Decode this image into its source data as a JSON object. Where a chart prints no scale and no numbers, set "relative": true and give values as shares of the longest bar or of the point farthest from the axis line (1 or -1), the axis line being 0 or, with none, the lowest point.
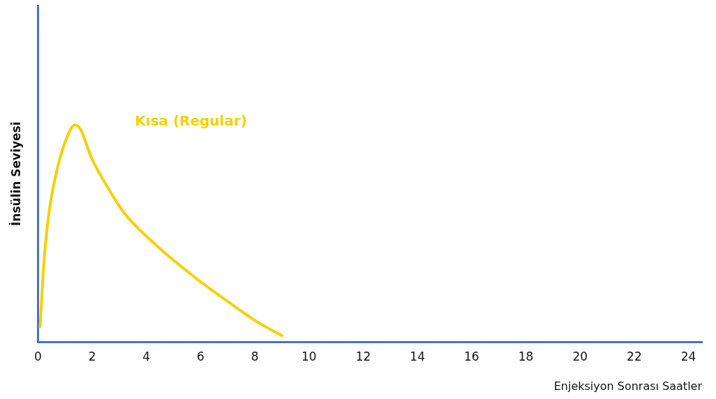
{
  "chart_data": {
    "type": "line",
    "relative": true,
    "xlabel": "Enjeksiyon Sonrası Saatler",
    "ylabel": "İnsülin Seviyesi",
    "xlim": [
      0,
      24.5
    ],
    "xticks": [
      0,
      2,
      4,
      6,
      8,
      10,
      12,
      14,
      16,
      18,
      20,
      22,
      24
    ],
    "grid": false,
    "legend": false,
    "marker": "none",
    "line_style": "solid",
    "series": [
      {
        "name": "Kısa (Regular)",
        "color": "#f5d000",
        "x": [
          0.08,
          0.21,
          0.39,
          0.66,
          1.0,
          1.36,
          1.57,
          1.97,
          2.49,
          3.15,
          4.33,
          5.77,
          7.08,
          8.13,
          9.0
        ],
        "values": [
          0.07,
          0.35,
          0.58,
          0.77,
          0.92,
          1.0,
          0.98,
          0.85,
          0.73,
          0.6,
          0.45,
          0.3,
          0.18,
          0.09,
          0.03
        ]
      }
    ]
  }
}
